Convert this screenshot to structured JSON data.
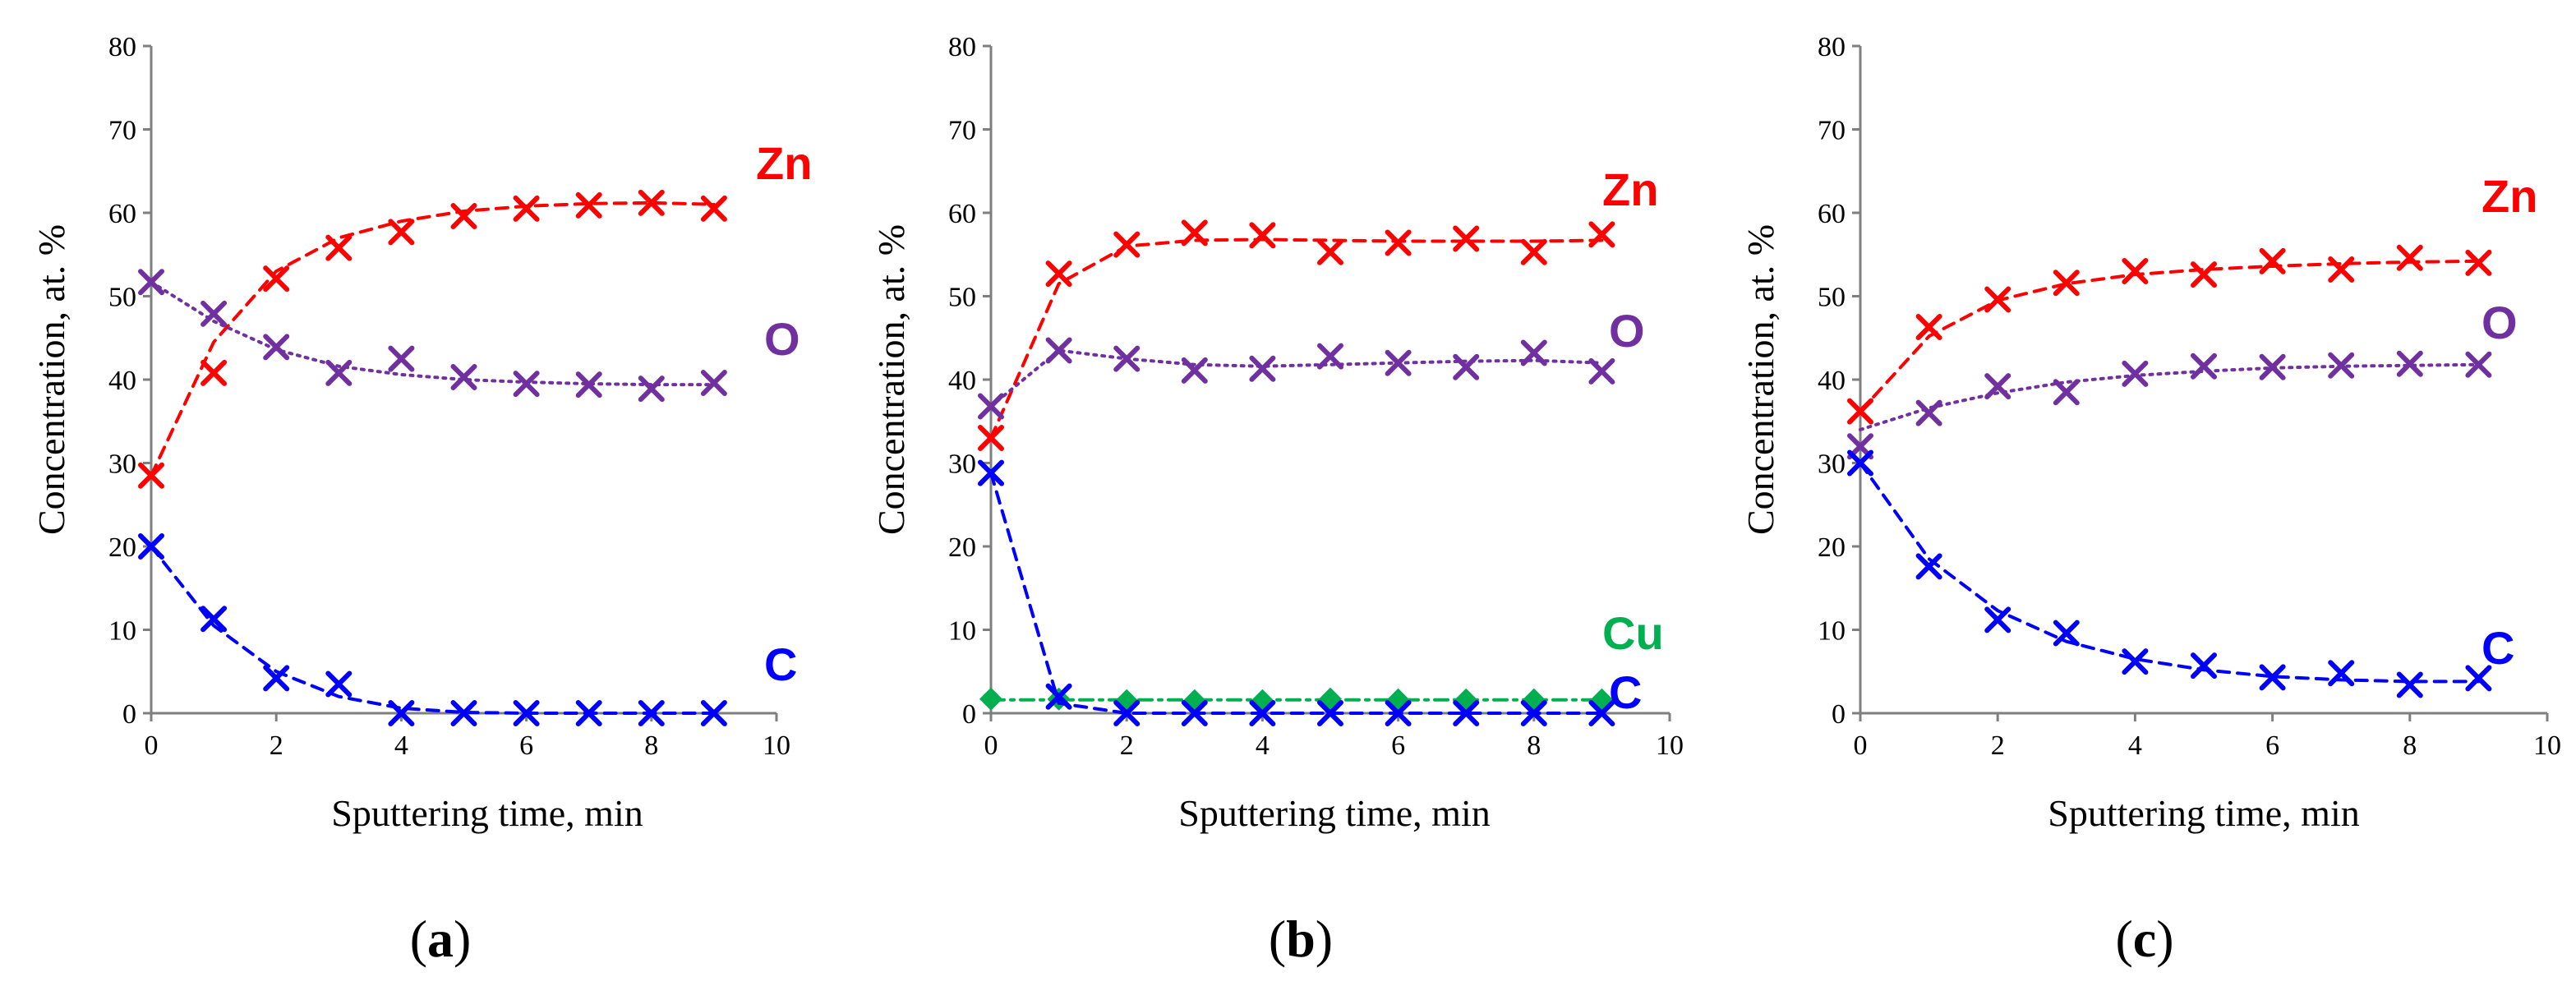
{
  "figure": {
    "captions": [
      {
        "open": "(",
        "letter": "a",
        "close": ")"
      },
      {
        "open": "(",
        "letter": "b",
        "close": ")"
      },
      {
        "open": "(",
        "letter": "c",
        "close": ")"
      }
    ]
  },
  "chart_data": [
    {
      "type": "line",
      "panel": "a",
      "xlabel": "Sputtering time, min",
      "ylabel": "Concentration, at. %",
      "xlim": [
        0,
        10
      ],
      "ylim": [
        0,
        80
      ],
      "xticks": [
        "0",
        "2",
        "4",
        "6",
        "8",
        "10"
      ],
      "yticks": [
        "0",
        "10",
        "20",
        "30",
        "40",
        "50",
        "60",
        "70",
        "80"
      ],
      "series": [
        {
          "name": "Zn",
          "color": "#ff0000",
          "marker": "x",
          "line": "dashed",
          "x": [
            0,
            1,
            2,
            3,
            4,
            5,
            6,
            7,
            8,
            9
          ],
          "values": [
            28.5,
            40.8,
            52.1,
            55.8,
            57.7,
            59.6,
            60.5,
            60.9,
            61.2,
            60.5
          ],
          "fit": [
            28.5,
            44.5,
            53.0,
            57.0,
            59.0,
            60.2,
            60.8,
            61.1,
            61.2,
            61.0
          ]
        },
        {
          "name": "O",
          "color": "#7030a0",
          "marker": "x",
          "line": "dotted",
          "x": [
            0,
            1,
            2,
            3,
            4,
            5,
            6,
            7,
            8,
            9
          ],
          "values": [
            51.7,
            47.9,
            43.9,
            40.8,
            42.5,
            40.3,
            39.5,
            39.4,
            38.9,
            39.6
          ],
          "fit": [
            51.7,
            47.0,
            43.6,
            41.6,
            40.6,
            40.0,
            39.7,
            39.5,
            39.4,
            39.4
          ]
        },
        {
          "name": "C",
          "color": "#0000ff",
          "marker": "x",
          "line": "dashed",
          "x": [
            0,
            1,
            2,
            3,
            4,
            5,
            6,
            7,
            8,
            9
          ],
          "values": [
            20.0,
            11.3,
            4.2,
            3.5,
            0,
            0,
            0,
            0,
            0,
            0
          ],
          "fit": [
            20.0,
            10.5,
            5.0,
            2.0,
            0.6,
            0.1,
            0,
            0,
            0,
            0
          ]
        }
      ]
    },
    {
      "type": "line",
      "panel": "b",
      "xlabel": "Sputtering time, min",
      "ylabel": "Concentration, at. %",
      "xlim": [
        0,
        10
      ],
      "ylim": [
        0,
        80
      ],
      "xticks": [
        "0",
        "2",
        "4",
        "6",
        "8",
        "10"
      ],
      "yticks": [
        "0",
        "10",
        "20",
        "30",
        "40",
        "50",
        "60",
        "70",
        "80"
      ],
      "series": [
        {
          "name": "Zn",
          "color": "#ff0000",
          "marker": "x",
          "line": "dashed",
          "x": [
            0,
            1,
            2,
            3,
            4,
            5,
            6,
            7,
            8,
            9
          ],
          "values": [
            33.0,
            52.7,
            56.2,
            57.6,
            57.3,
            55.3,
            56.4,
            56.9,
            55.3,
            57.4
          ],
          "fit": [
            33.0,
            51.5,
            56.0,
            56.7,
            56.8,
            56.7,
            56.6,
            56.6,
            56.6,
            56.7
          ]
        },
        {
          "name": "O",
          "color": "#7030a0",
          "marker": "x",
          "line": "dotted",
          "x": [
            0,
            1,
            2,
            3,
            4,
            5,
            6,
            7,
            8,
            9
          ],
          "values": [
            36.8,
            43.5,
            42.5,
            41.1,
            41.3,
            42.8,
            42.0,
            41.5,
            43.2,
            41.0
          ],
          "fit": [
            36.8,
            43.5,
            42.5,
            41.8,
            41.6,
            41.8,
            42.0,
            42.2,
            42.3,
            42.0
          ]
        },
        {
          "name": "Cu",
          "color": "#00b050",
          "marker": "diamond",
          "line": "dashdot",
          "x": [
            0,
            1,
            2,
            3,
            4,
            5,
            6,
            7,
            8,
            9
          ],
          "values": [
            1.7,
            1.7,
            1.5,
            1.5,
            1.5,
            1.7,
            1.6,
            1.6,
            1.6,
            1.6
          ],
          "fit": [
            1.6,
            1.6,
            1.6,
            1.6,
            1.6,
            1.6,
            1.6,
            1.6,
            1.6,
            1.6
          ]
        },
        {
          "name": "C",
          "color": "#0000ff",
          "marker": "x",
          "line": "dashed",
          "x": [
            0,
            1,
            2,
            3,
            4,
            5,
            6,
            7,
            8,
            9
          ],
          "values": [
            28.8,
            2.0,
            0,
            0,
            0,
            0,
            0,
            0,
            0,
            0
          ],
          "fit": [
            28.8,
            1.2,
            0,
            0,
            0,
            0,
            0,
            0,
            0,
            0
          ]
        }
      ]
    },
    {
      "type": "line",
      "panel": "c",
      "xlabel": "Sputtering time, min",
      "ylabel": "Concentration, at. %",
      "xlim": [
        0,
        10
      ],
      "ylim": [
        0,
        80
      ],
      "xticks": [
        "0",
        "2",
        "4",
        "6",
        "8",
        "10"
      ],
      "yticks": [
        "0",
        "10",
        "20",
        "30",
        "40",
        "50",
        "60",
        "70",
        "80"
      ],
      "series": [
        {
          "name": "Zn",
          "color": "#ff0000",
          "marker": "x",
          "line": "dashed",
          "x": [
            0,
            1,
            2,
            3,
            4,
            5,
            6,
            7,
            8,
            9
          ],
          "values": [
            36.2,
            46.3,
            49.6,
            51.6,
            53.0,
            52.6,
            54.2,
            53.2,
            54.6,
            54.0
          ],
          "fit": [
            36.2,
            45.2,
            49.5,
            51.5,
            52.6,
            53.2,
            53.6,
            53.9,
            54.1,
            54.2
          ]
        },
        {
          "name": "O",
          "color": "#7030a0",
          "marker": "x",
          "line": "dotted",
          "x": [
            0,
            1,
            2,
            3,
            4,
            5,
            6,
            7,
            8,
            9
          ],
          "values": [
            32.0,
            36.0,
            39.2,
            38.5,
            40.7,
            41.6,
            41.5,
            41.7,
            41.9,
            41.8
          ],
          "fit": [
            34.0,
            36.6,
            38.4,
            39.7,
            40.5,
            41.0,
            41.4,
            41.6,
            41.7,
            41.8
          ]
        },
        {
          "name": "C",
          "color": "#0000ff",
          "marker": "x",
          "line": "dashed",
          "x": [
            0,
            1,
            2,
            3,
            4,
            5,
            6,
            7,
            8,
            9
          ],
          "values": [
            30.0,
            17.6,
            11.2,
            9.6,
            6.2,
            5.7,
            4.3,
            4.8,
            3.4,
            4.2
          ],
          "fit": [
            30.0,
            18.5,
            12.3,
            8.6,
            6.5,
            5.2,
            4.4,
            4.0,
            3.8,
            3.8
          ]
        }
      ]
    }
  ]
}
